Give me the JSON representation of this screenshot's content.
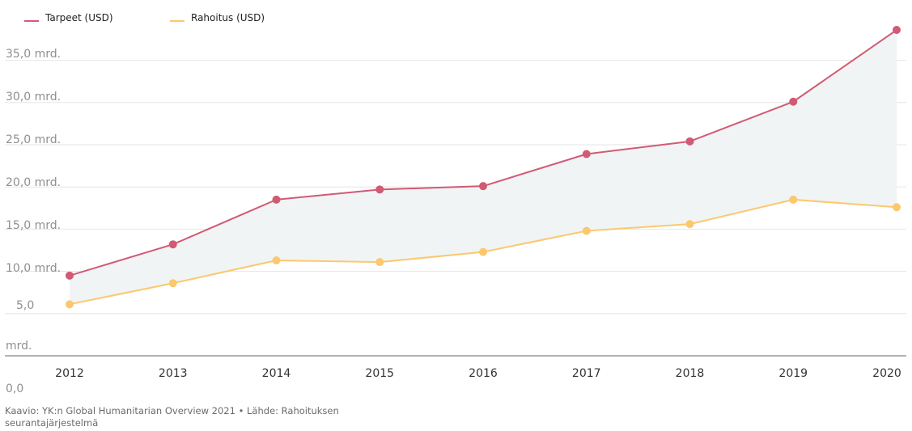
{
  "chart_data": {
    "type": "line",
    "x": [
      "2012",
      "2013",
      "2014",
      "2015",
      "2016",
      "2017",
      "2018",
      "2019",
      "2020"
    ],
    "series": [
      {
        "name": "Tarpeet (USD)",
        "color": "#d15a74",
        "values": [
          9.5,
          13.2,
          18.5,
          19.7,
          20.1,
          23.9,
          25.4,
          30.1,
          38.6
        ]
      },
      {
        "name": "Rahoitus (USD)",
        "color": "#fbc86e",
        "values": [
          6.1,
          8.6,
          11.3,
          11.1,
          12.3,
          14.8,
          15.6,
          18.5,
          17.6
        ]
      }
    ],
    "y_ticks": [
      {
        "value": 0,
        "label": "0,0"
      },
      {
        "value": 5,
        "label": "5,0"
      },
      {
        "value": 10,
        "label": "10,0 mrd."
      },
      {
        "value": 15,
        "label": "15,0 mrd."
      },
      {
        "value": 20,
        "label": "20,0 mrd."
      },
      {
        "value": 25,
        "label": "25,0 mrd."
      },
      {
        "value": 30,
        "label": "30,0 mrd."
      },
      {
        "value": 35,
        "label": "35,0 mrd."
      }
    ],
    "y_stray_label": "mrd.",
    "ylim": [
      0,
      39
    ],
    "grid": true,
    "legend": "top-left",
    "fill_between_color": "#f1f4f4"
  },
  "caption": "Kaavio: YK:n Global Humanitarian Overview 2021 • Lähde: Rahoituksen seurantajärjestelmä"
}
